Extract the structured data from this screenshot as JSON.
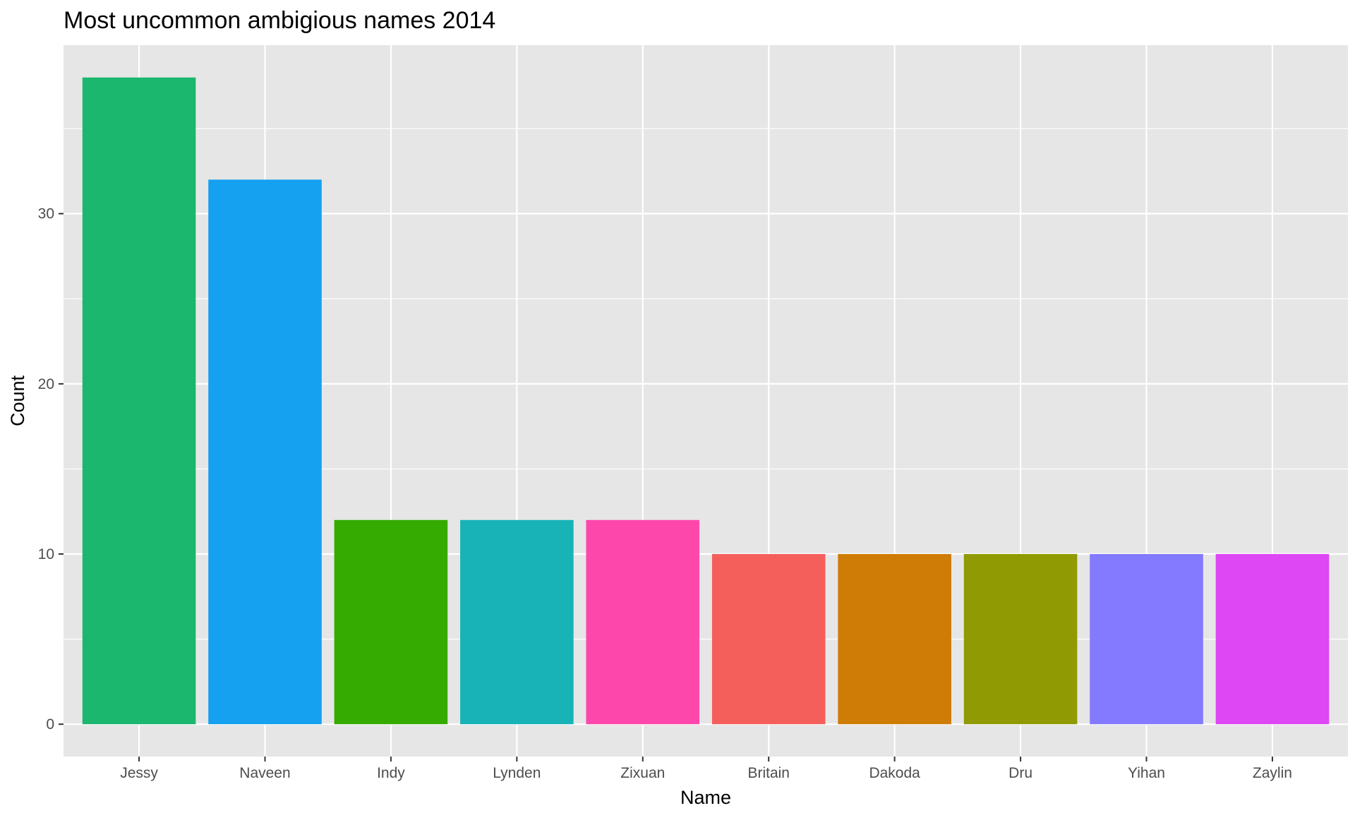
{
  "chart_data": {
    "type": "bar",
    "title": "Most uncommon ambigious names 2014",
    "xlabel": "Name",
    "ylabel": "Count",
    "categories": [
      "Jessy",
      "Naveen",
      "Indy",
      "Lynden",
      "Zixuan",
      "Britain",
      "Dakoda",
      "Dru",
      "Yihan",
      "Zaylin"
    ],
    "values": [
      38,
      32,
      12,
      12,
      12,
      10,
      10,
      10,
      10,
      10
    ],
    "colors": [
      "#1BB76E",
      "#16A0F0",
      "#35AA00",
      "#17B3B6",
      "#FD47AB",
      "#F45F5C",
      "#CF7C06",
      "#909A02",
      "#847AFF",
      "#DD47F4"
    ],
    "yticks": [
      0,
      10,
      20,
      30
    ],
    "ylim": [
      -1.9,
      39.9
    ],
    "grid": true,
    "legend": "none",
    "panel_background": "#E6E6E6",
    "grid_color": "#FFFFFF"
  }
}
